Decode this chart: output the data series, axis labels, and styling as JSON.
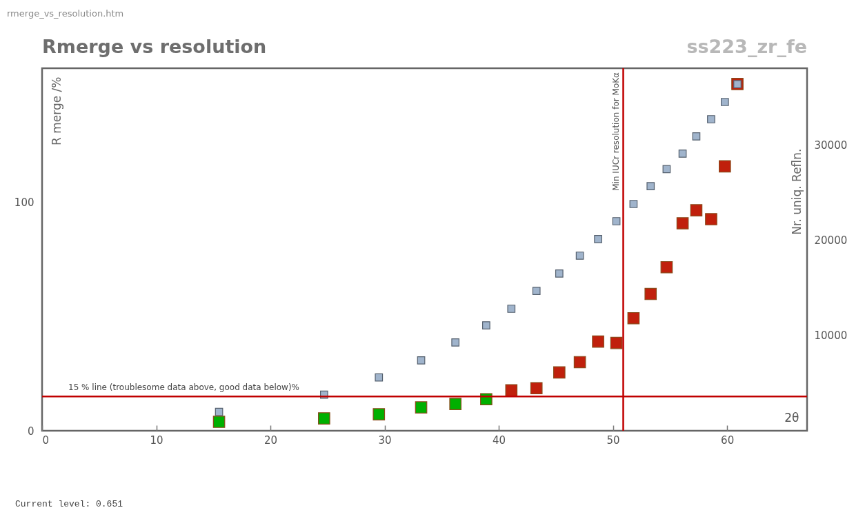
{
  "chart_data": {
    "type": "scatter",
    "title": "Rmerge vs resolution",
    "subtitle": "ss223_zr_fe",
    "xlabel": "2θ",
    "ylabel": "R merge /%",
    "y2label": "Nr. uniq. Refln.",
    "xlim": [
      0,
      67
    ],
    "xticks": [
      0,
      10,
      20,
      30,
      40,
      50,
      60
    ],
    "ylim": [
      0,
      158.5
    ],
    "yticks": [
      0,
      100
    ],
    "y2lim": [
      0,
      38100
    ],
    "y2ticks": [
      10000,
      20000,
      30000
    ],
    "grid": false,
    "marker": "square",
    "x": [
      15.5,
      24.7,
      29.5,
      33.2,
      36.2,
      38.9,
      41.1,
      43.3,
      45.3,
      47.1,
      48.7,
      50.3,
      51.8,
      53.3,
      54.7,
      56.1,
      57.3,
      58.6,
      59.8,
      60.9
    ],
    "series": [
      {
        "colors": [
          "#00b000",
          "#00b000",
          "#00b000",
          "#00b000",
          "#00b000",
          "#00b000",
          "#c0200c",
          "#c0200c",
          "#c0200c",
          "#c0200c",
          "#c0200c",
          "#c0200c",
          "#c0200c",
          "#c0200c",
          "#c0200c",
          "#c0200c",
          "#c0200c",
          "#c0200c",
          "#c0200c",
          "#c0200c"
        ],
        "values": [
          3.9,
          5.4,
          7.2,
          10.2,
          11.7,
          13.8,
          17.7,
          18.6,
          25.5,
          30.0,
          39.0,
          38.4,
          49.2,
          59.8,
          71.5,
          90.7,
          96.4,
          92.5,
          115.6,
          151.6
        ]
      },
      {
        "axis": "y2",
        "color": "#a0b4cc",
        "values": [
          1990,
          3790,
          5600,
          7400,
          9280,
          11080,
          12820,
          14690,
          16530,
          18400,
          20140,
          22020,
          23830,
          25700,
          27500,
          29130,
          30940,
          32740,
          34550,
          36430
        ]
      }
    ],
    "ref_lines": [
      {
        "axis": "y",
        "value": 15,
        "label": "15 % line (troublesome data above, good data below)%",
        "color": "#c00000"
      },
      {
        "axis": "x",
        "value": 50.9,
        "label": "Min IUCr resolution for MoKα",
        "color": "#c00000"
      }
    ],
    "annotations": [
      "rmerge_vs_resolution.htm",
      "Current level: 0.651"
    ]
  }
}
